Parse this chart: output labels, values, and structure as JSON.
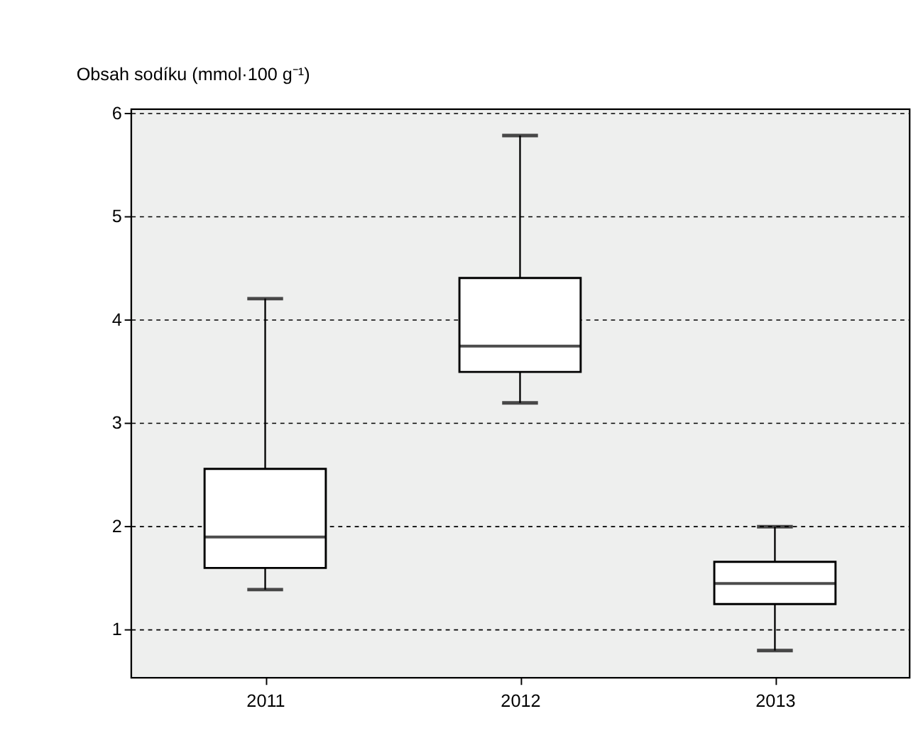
{
  "chart_data": {
    "type": "box",
    "ylabel": "Obsah sodíku (mmol·100 g⁻¹)",
    "categories": [
      "2011",
      "2012",
      "2013"
    ],
    "boxes": [
      {
        "low": 1.38,
        "q1": 1.59,
        "median": 1.89,
        "q3": 2.55,
        "high": 4.2
      },
      {
        "low": 3.19,
        "q1": 3.49,
        "median": 3.74,
        "q3": 4.4,
        "high": 5.78
      },
      {
        "low": 0.79,
        "q1": 1.24,
        "median": 1.44,
        "q3": 1.65,
        "high": 1.99
      }
    ],
    "ylim": [
      0.53,
      6.04
    ],
    "yticks": [
      1,
      2,
      3,
      4,
      5,
      6
    ],
    "grid": "y"
  }
}
